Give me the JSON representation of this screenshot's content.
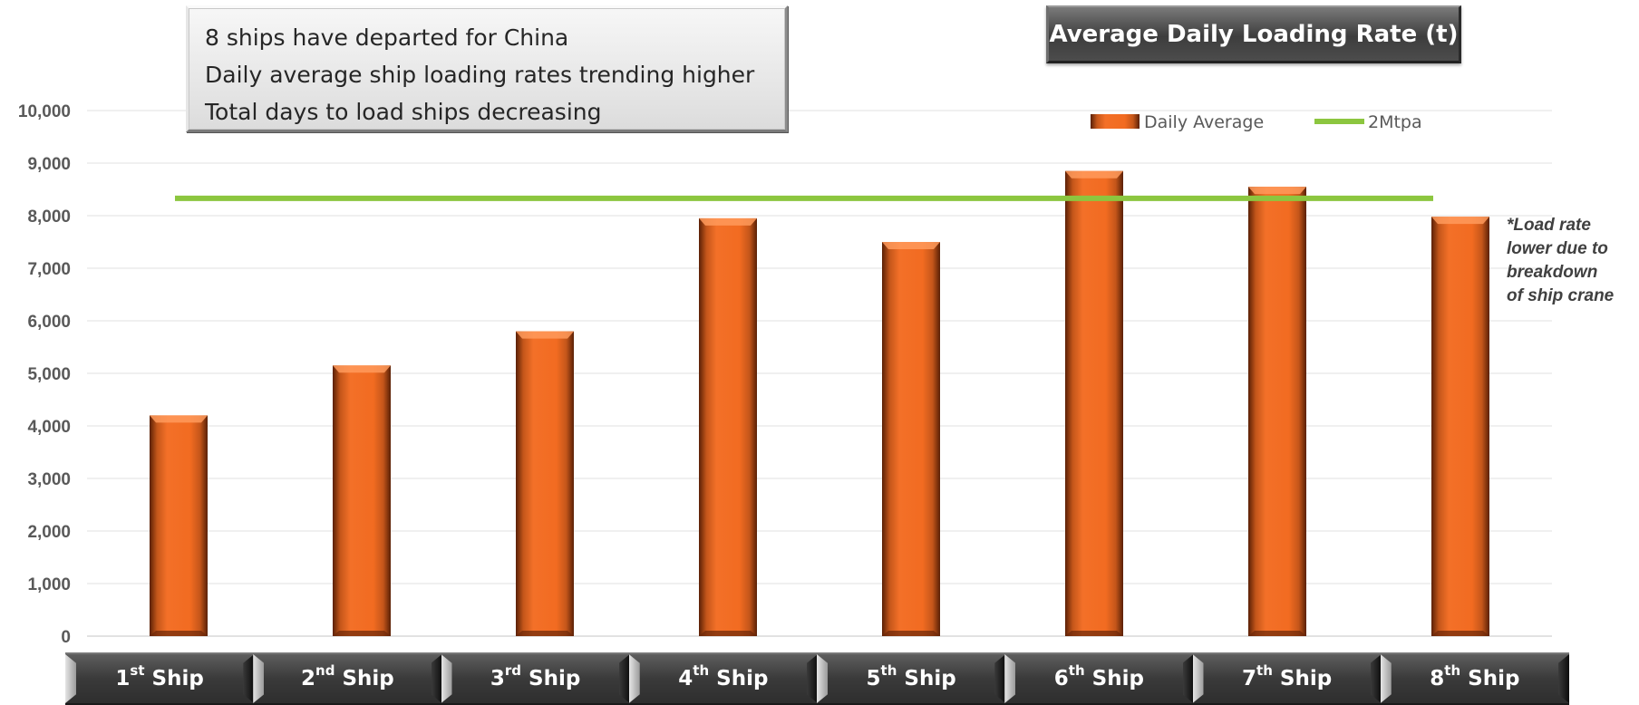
{
  "title": "Average Daily Loading Rate (t)",
  "callout_lines": [
    "8 ships have departed for China",
    "Daily average ship loading rates trending higher",
    "Total days to load ships decreasing"
  ],
  "note_lines": [
    "*Load rate",
    "lower due to",
    "breakdown",
    "of ship crane"
  ],
  "colors": {
    "bar": "#f26b21",
    "bar_dark": "#7a2e0a",
    "target_line": "#8cc63f",
    "grid": "#e6e6e6"
  },
  "chart_data": {
    "type": "bar",
    "title": "Average Daily Loading Rate (t)",
    "xlabel": "",
    "ylabel": "",
    "categories": [
      {
        "num": "1",
        "sup": "st",
        "word": "Ship"
      },
      {
        "num": "2",
        "sup": "nd",
        "word": "Ship"
      },
      {
        "num": "3",
        "sup": "rd",
        "word": "Ship"
      },
      {
        "num": "4",
        "sup": "th",
        "word": "Ship"
      },
      {
        "num": "5",
        "sup": "th",
        "word": "Ship"
      },
      {
        "num": "6",
        "sup": "th",
        "word": "Ship"
      },
      {
        "num": "7",
        "sup": "th",
        "word": "Ship"
      },
      {
        "num": "8",
        "sup": "th",
        "word": "Ship"
      }
    ],
    "series": [
      {
        "name": "Daily Average",
        "type": "bar",
        "values": [
          4200,
          5150,
          5800,
          7950,
          7500,
          8850,
          8550,
          7980
        ]
      },
      {
        "name": "2Mtpa",
        "type": "line",
        "values": [
          8330,
          8330,
          8330,
          8330,
          8330,
          8330,
          8330,
          8330
        ]
      }
    ],
    "ylim": [
      0,
      10000
    ],
    "yticks": [
      "0",
      "1,000",
      "2,000",
      "3,000",
      "4,000",
      "5,000",
      "6,000",
      "7,000",
      "8,000",
      "9,000",
      "10,000"
    ],
    "ytick_values": [
      0,
      1000,
      2000,
      3000,
      4000,
      5000,
      6000,
      7000,
      8000,
      9000,
      10000
    ],
    "grid": true,
    "legend": "top-right"
  }
}
